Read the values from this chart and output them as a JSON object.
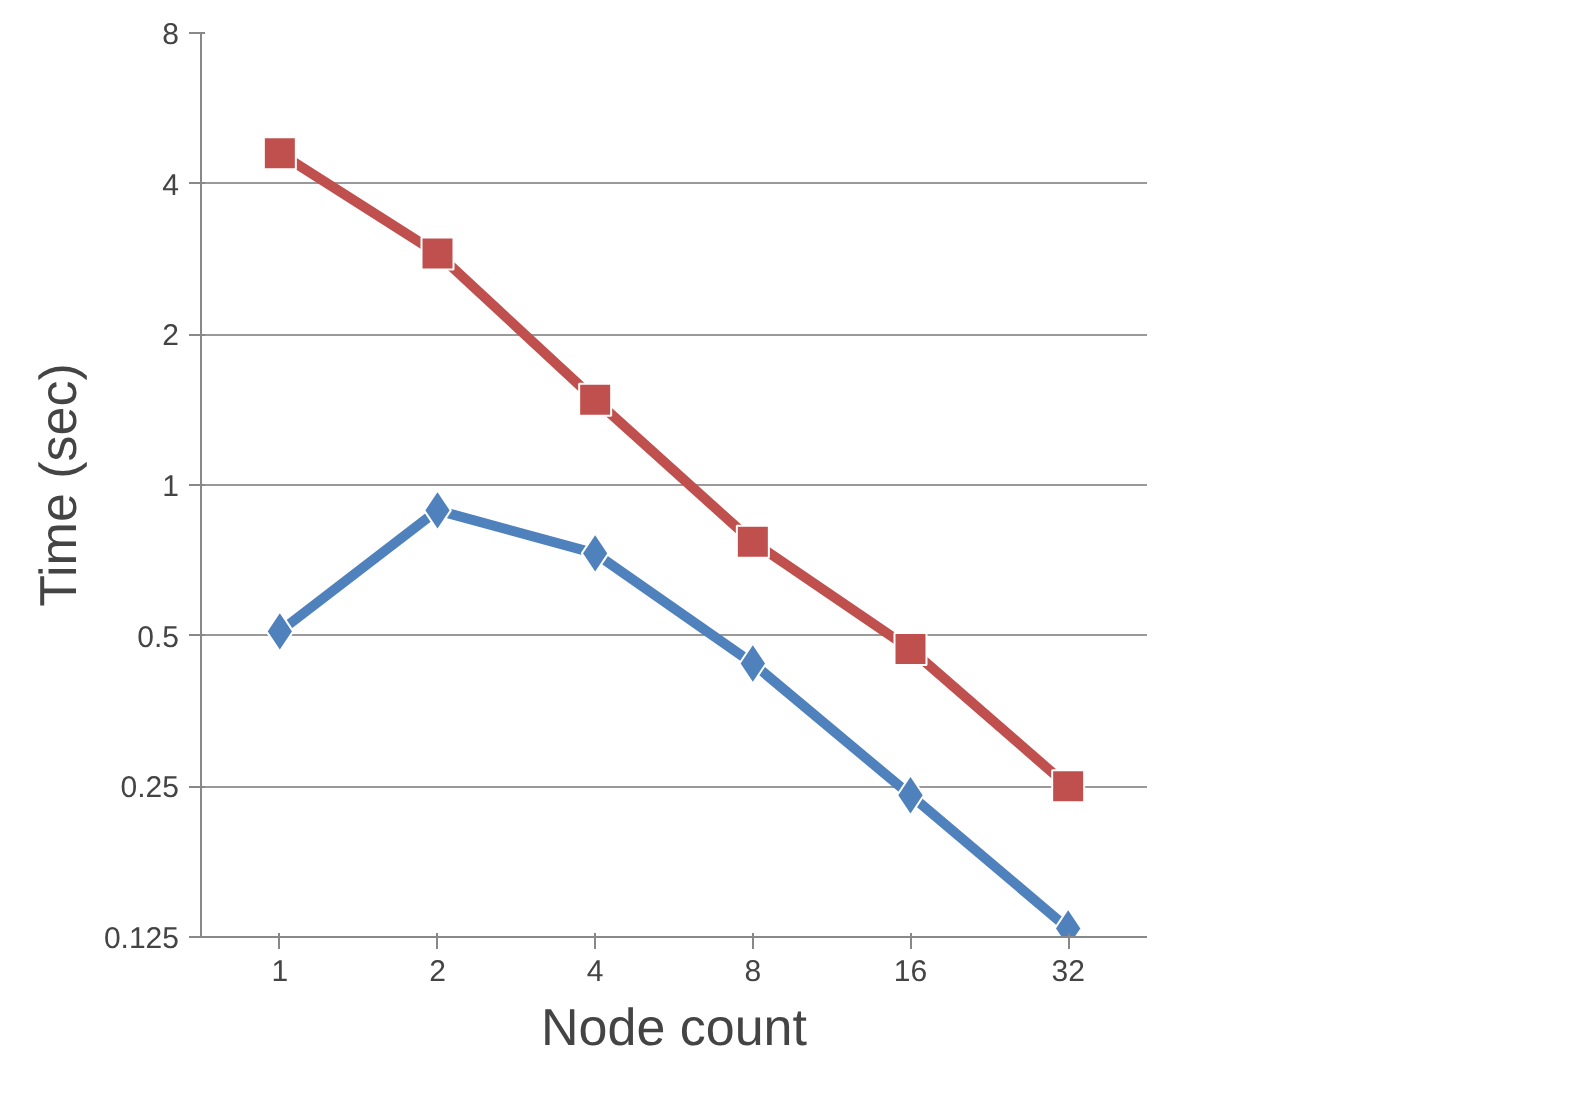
{
  "chart_data": {
    "type": "line",
    "xlabel": "Node count",
    "ylabel": "Time (sec)",
    "categories": [
      "1",
      "2",
      "4",
      "8",
      "16",
      "32"
    ],
    "log": "y",
    "ylim": [
      0.125,
      8
    ],
    "yticks": [
      0.125,
      0.25,
      0.5,
      1,
      2,
      4,
      8
    ],
    "grid": "y",
    "series": [
      {
        "color": "#4f81bd",
        "marker": "diamond",
        "values": [
          0.51,
          0.89,
          0.73,
          0.44,
          0.24,
          0.13
        ]
      },
      {
        "color": "#c0504d",
        "marker": "square",
        "values": [
          4.6,
          2.9,
          1.48,
          0.77,
          0.47,
          0.25
        ]
      }
    ]
  }
}
